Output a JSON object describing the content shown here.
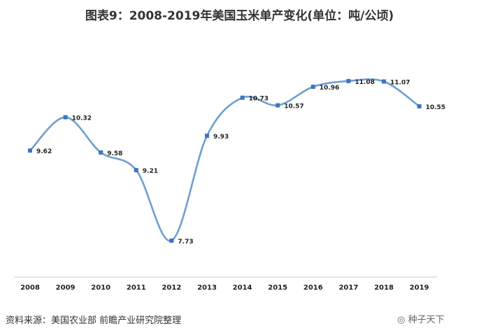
{
  "chart_data": {
    "type": "line",
    "title": "图表9：2008-2019年美国玉米单产变化(单位：吨/公顷)",
    "xlabel": "",
    "ylabel": "",
    "categories": [
      "2008",
      "2009",
      "2010",
      "2011",
      "2012",
      "2013",
      "2014",
      "2015",
      "2016",
      "2017",
      "2018",
      "2019"
    ],
    "series": [
      {
        "values": [
          9.62,
          10.32,
          9.58,
          9.21,
          7.73,
          9.93,
          10.73,
          10.57,
          10.96,
          11.08,
          11.07,
          10.55
        ]
      }
    ],
    "ylim": [
      7.2,
      11.9
    ],
    "grid": false,
    "smooth": true,
    "line_color": "#6e9fd0",
    "marker_color": "#3d75bd",
    "axis_color": "#c8c8c8"
  },
  "source": "资料来源：美国农业部 前瞻产业研究院整理",
  "wechat_watermark": "种子天下"
}
